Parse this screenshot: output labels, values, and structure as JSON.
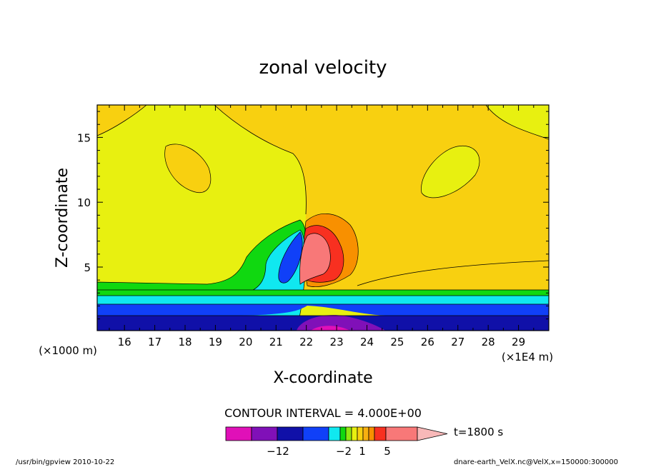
{
  "chart_data": {
    "type": "heatmap",
    "title": "zonal velocity",
    "xlabel": "X-coordinate",
    "ylabel": "Z-coordinate",
    "y_unit_note": "(×1000 m)",
    "x_unit_note": "(×1E4 m)",
    "xlim": [
      15.1,
      30.0
    ],
    "ylim": [
      0.1,
      17.5
    ],
    "x_ticks": [
      "16",
      "17",
      "18",
      "19",
      "20",
      "21",
      "22",
      "23",
      "24",
      "25",
      "26",
      "27",
      "28",
      "29"
    ],
    "y_ticks": [
      "5",
      "10",
      "15"
    ],
    "x_tick_values": [
      16,
      17,
      18,
      19,
      20,
      21,
      22,
      23,
      24,
      25,
      26,
      27,
      28,
      29
    ],
    "y_tick_values": [
      5,
      10,
      15
    ],
    "contour_interval_text": "CONTOUR INTERVAL = 4.000E+00",
    "colorbar": {
      "colors": [
        "#e010b8",
        "#8010b8",
        "#1010a8",
        "#1040f8",
        "#10e8f0",
        "#10d810",
        "#90e810",
        "#e8f010",
        "#f8d010",
        "#f8b010",
        "#f89000",
        "#f83020",
        "#f87878",
        "#f8b8b8"
      ],
      "tick_labels": [
        "−12",
        "−2",
        "1",
        "5"
      ],
      "time_label": "t=1800 s"
    },
    "fields": {
      "background_upper_left": "#e8f010",
      "background_upper_right": "#f8d010",
      "surface_layers": [
        "#1010a8",
        "#1040f8",
        "#10e8f0",
        "#10d810"
      ],
      "core_positive": [
        "#f89000",
        "#f83020",
        "#f87878"
      ],
      "core_negative": [
        "#10d810",
        "#10e8f0",
        "#1040f8"
      ]
    }
  },
  "footer": {
    "left": "/usr/bin/gpview   2010-10-22",
    "right": "dnare-earth_VelX.nc@VelX,x=150000:300000"
  }
}
